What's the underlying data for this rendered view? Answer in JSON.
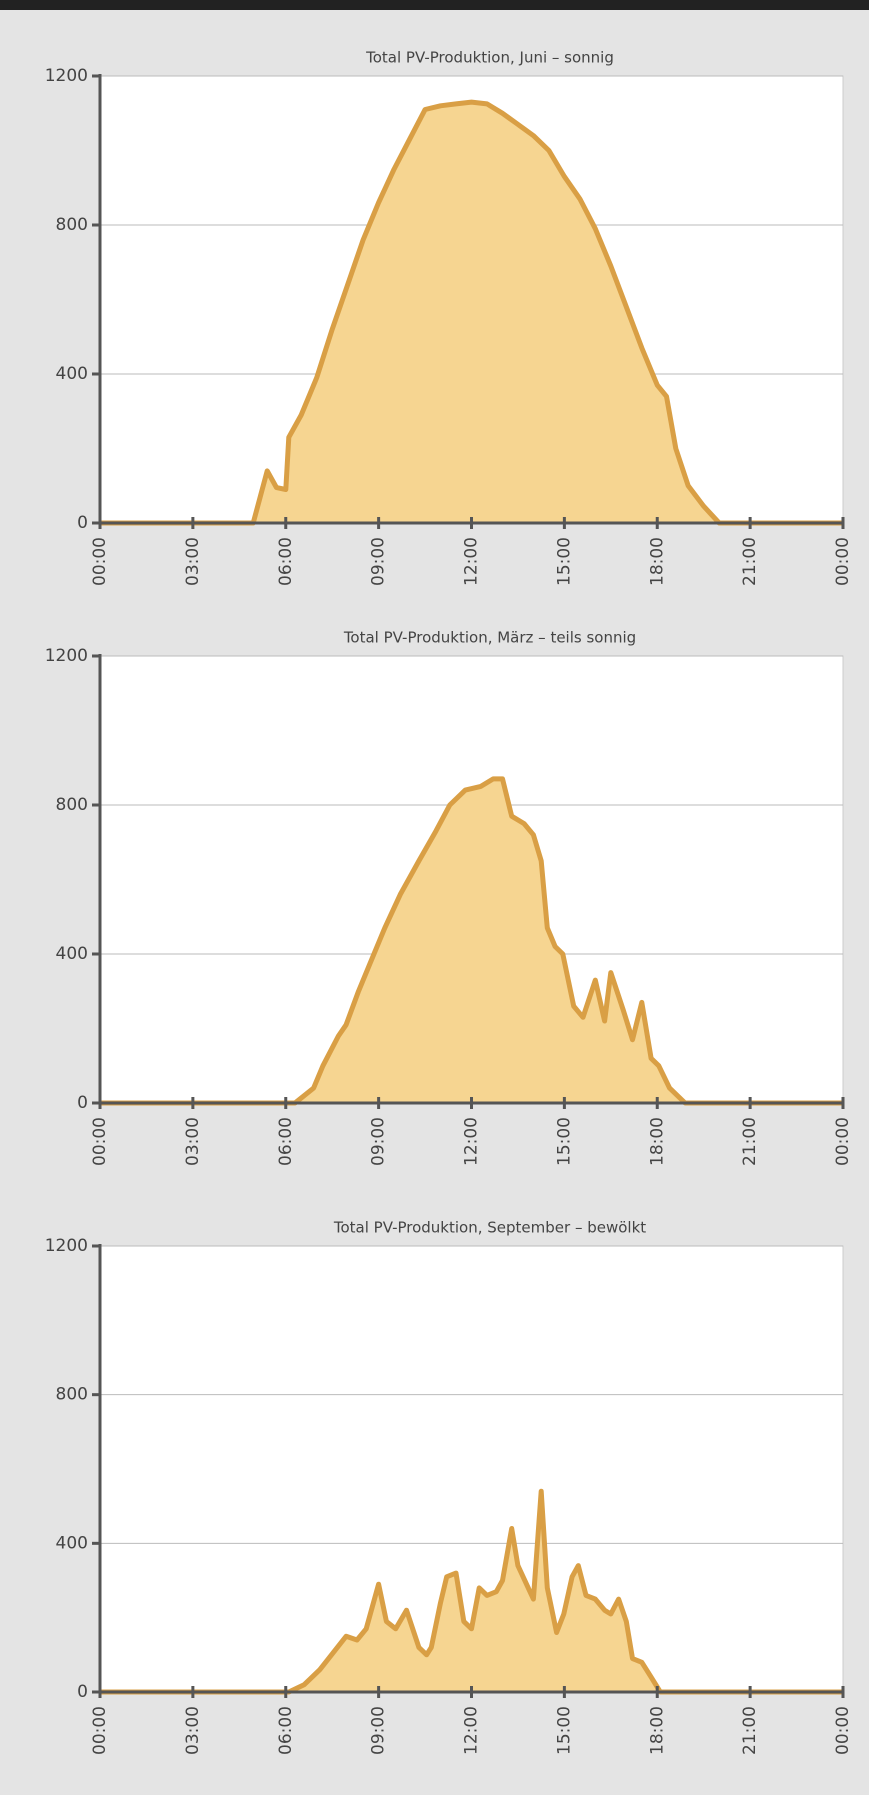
{
  "chart_data": [
    {
      "type": "area",
      "title": "Total PV-Produktion, Juni – sonnig",
      "x": [
        0,
        4.95,
        5.4,
        5.7,
        6.0,
        6.1,
        6.5,
        7.0,
        7.5,
        8,
        8.5,
        9,
        9.5,
        10,
        10.5,
        11,
        11.5,
        12,
        12.5,
        13,
        13.5,
        14,
        14.5,
        15,
        15.5,
        16,
        16.5,
        17,
        17.5,
        18,
        18.3,
        18.6,
        19,
        19.5,
        20,
        24
      ],
      "values": [
        0,
        0,
        140,
        95,
        90,
        230,
        290,
        390,
        520,
        640,
        760,
        860,
        950,
        1030,
        1110,
        1120,
        1125,
        1130,
        1125,
        1100,
        1070,
        1040,
        1000,
        930,
        870,
        790,
        690,
        580,
        470,
        370,
        340,
        200,
        100,
        45,
        0,
        0
      ],
      "color": "#d99f45",
      "fill": "#f6d591",
      "xlim": [
        0,
        24
      ],
      "ylim": [
        0,
        1200
      ],
      "yticks": [
        0,
        400,
        800,
        1200
      ],
      "xticks": [
        {
          "value": 0,
          "label": "00:00"
        },
        {
          "value": 3,
          "label": "03:00"
        },
        {
          "value": 6,
          "label": "06:00"
        },
        {
          "value": 9,
          "label": "09:00"
        },
        {
          "value": 12,
          "label": "12:00"
        },
        {
          "value": 15,
          "label": "15:00"
        },
        {
          "value": 18,
          "label": "18:00"
        },
        {
          "value": 21,
          "label": "21:00"
        },
        {
          "value": 24,
          "label": "00:00"
        }
      ],
      "grid": true
    },
    {
      "type": "area",
      "title": "Total PV-Produktion, März – teils sonnig",
      "x": [
        0,
        6.3,
        6.9,
        7.2,
        7.7,
        7.95,
        8.35,
        8.7,
        9.2,
        9.7,
        10.3,
        10.85,
        11.3,
        11.8,
        12.3,
        12.7,
        13.0,
        13.3,
        13.7,
        14.0,
        14.25,
        14.45,
        14.7,
        14.95,
        15.3,
        15.6,
        16.0,
        16.3,
        16.5,
        16.9,
        17.2,
        17.5,
        17.8,
        18.05,
        18.4,
        18.9,
        24
      ],
      "values": [
        0,
        0,
        40,
        100,
        180,
        210,
        300,
        370,
        470,
        560,
        650,
        730,
        800,
        840,
        850,
        870,
        870,
        770,
        750,
        720,
        650,
        470,
        420,
        400,
        260,
        230,
        330,
        220,
        350,
        250,
        170,
        270,
        120,
        100,
        40,
        0,
        0
      ],
      "color": "#d99f45",
      "fill": "#f6d591",
      "xlim": [
        0,
        24
      ],
      "ylim": [
        0,
        1200
      ],
      "yticks": [
        0,
        400,
        800,
        1200
      ],
      "xticks": [
        {
          "value": 0,
          "label": "00:00"
        },
        {
          "value": 3,
          "label": "03:00"
        },
        {
          "value": 6,
          "label": "06:00"
        },
        {
          "value": 9,
          "label": "09:00"
        },
        {
          "value": 12,
          "label": "12:00"
        },
        {
          "value": 15,
          "label": "15:00"
        },
        {
          "value": 18,
          "label": "18:00"
        },
        {
          "value": 21,
          "label": "21:00"
        },
        {
          "value": 24,
          "label": "00:00"
        }
      ],
      "grid": true
    },
    {
      "type": "area",
      "title": "Total PV-Produktion, September – bewölkt",
      "x": [
        0,
        6.1,
        6.6,
        7.1,
        7.95,
        8.3,
        8.6,
        9.0,
        9.25,
        9.55,
        9.9,
        10.3,
        10.55,
        10.7,
        11.0,
        11.2,
        11.5,
        11.75,
        12.0,
        12.25,
        12.5,
        12.8,
        13.0,
        13.3,
        13.5,
        14.0,
        14.25,
        14.45,
        14.75,
        14.98,
        15.25,
        15.45,
        15.7,
        16.0,
        16.3,
        16.5,
        16.75,
        17.0,
        17.2,
        17.5,
        17.8,
        18.1,
        24
      ],
      "values": [
        0,
        0,
        20,
        60,
        150,
        140,
        170,
        290,
        190,
        170,
        220,
        120,
        100,
        120,
        240,
        310,
        320,
        190,
        170,
        280,
        260,
        270,
        300,
        440,
        340,
        250,
        540,
        280,
        160,
        210,
        310,
        340,
        260,
        250,
        220,
        210,
        250,
        190,
        90,
        80,
        40,
        0,
        0
      ],
      "color": "#d99f45",
      "fill": "#f6d591",
      "xlim": [
        0,
        24
      ],
      "ylim": [
        0,
        1200
      ],
      "yticks": [
        0,
        400,
        800,
        1200
      ],
      "xticks": [
        {
          "value": 0,
          "label": "00:00"
        },
        {
          "value": 3,
          "label": "03:00"
        },
        {
          "value": 6,
          "label": "06:00"
        },
        {
          "value": 9,
          "label": "09:00"
        },
        {
          "value": 12,
          "label": "12:00"
        },
        {
          "value": 15,
          "label": "15:00"
        },
        {
          "value": 18,
          "label": "18:00"
        },
        {
          "value": 21,
          "label": "21:00"
        },
        {
          "value": 24,
          "label": "00:00"
        }
      ],
      "grid": true
    }
  ]
}
